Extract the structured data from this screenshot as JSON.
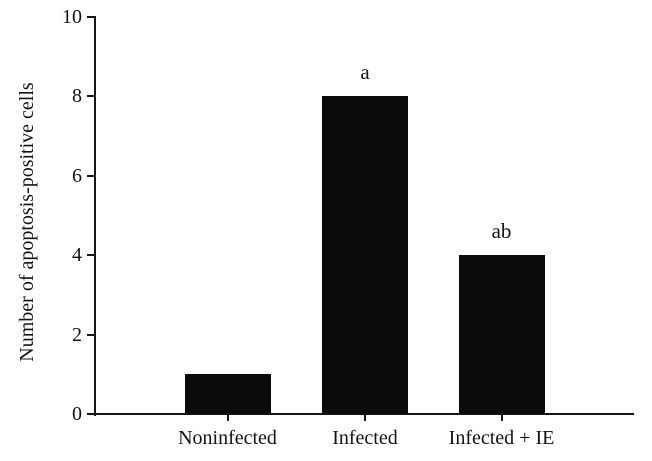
{
  "figure": {
    "background": "#ffffff",
    "axis_color": "#161616",
    "text_color": "#131313"
  },
  "chart_data": {
    "type": "bar",
    "categories": [
      "Noninfected",
      "Infected",
      "Infected + IE"
    ],
    "values": [
      1,
      8,
      4
    ],
    "bar_annotations": [
      "",
      "a",
      "ab"
    ],
    "bar_color": "#0b0b0b",
    "title": "",
    "xlabel": "",
    "ylabel": "Number of apoptosis-positive cells",
    "ylim": [
      0,
      10
    ],
    "yticks": [
      "0",
      "2",
      "4",
      "6",
      "8",
      "10"
    ],
    "grid": false,
    "legend": null
  }
}
